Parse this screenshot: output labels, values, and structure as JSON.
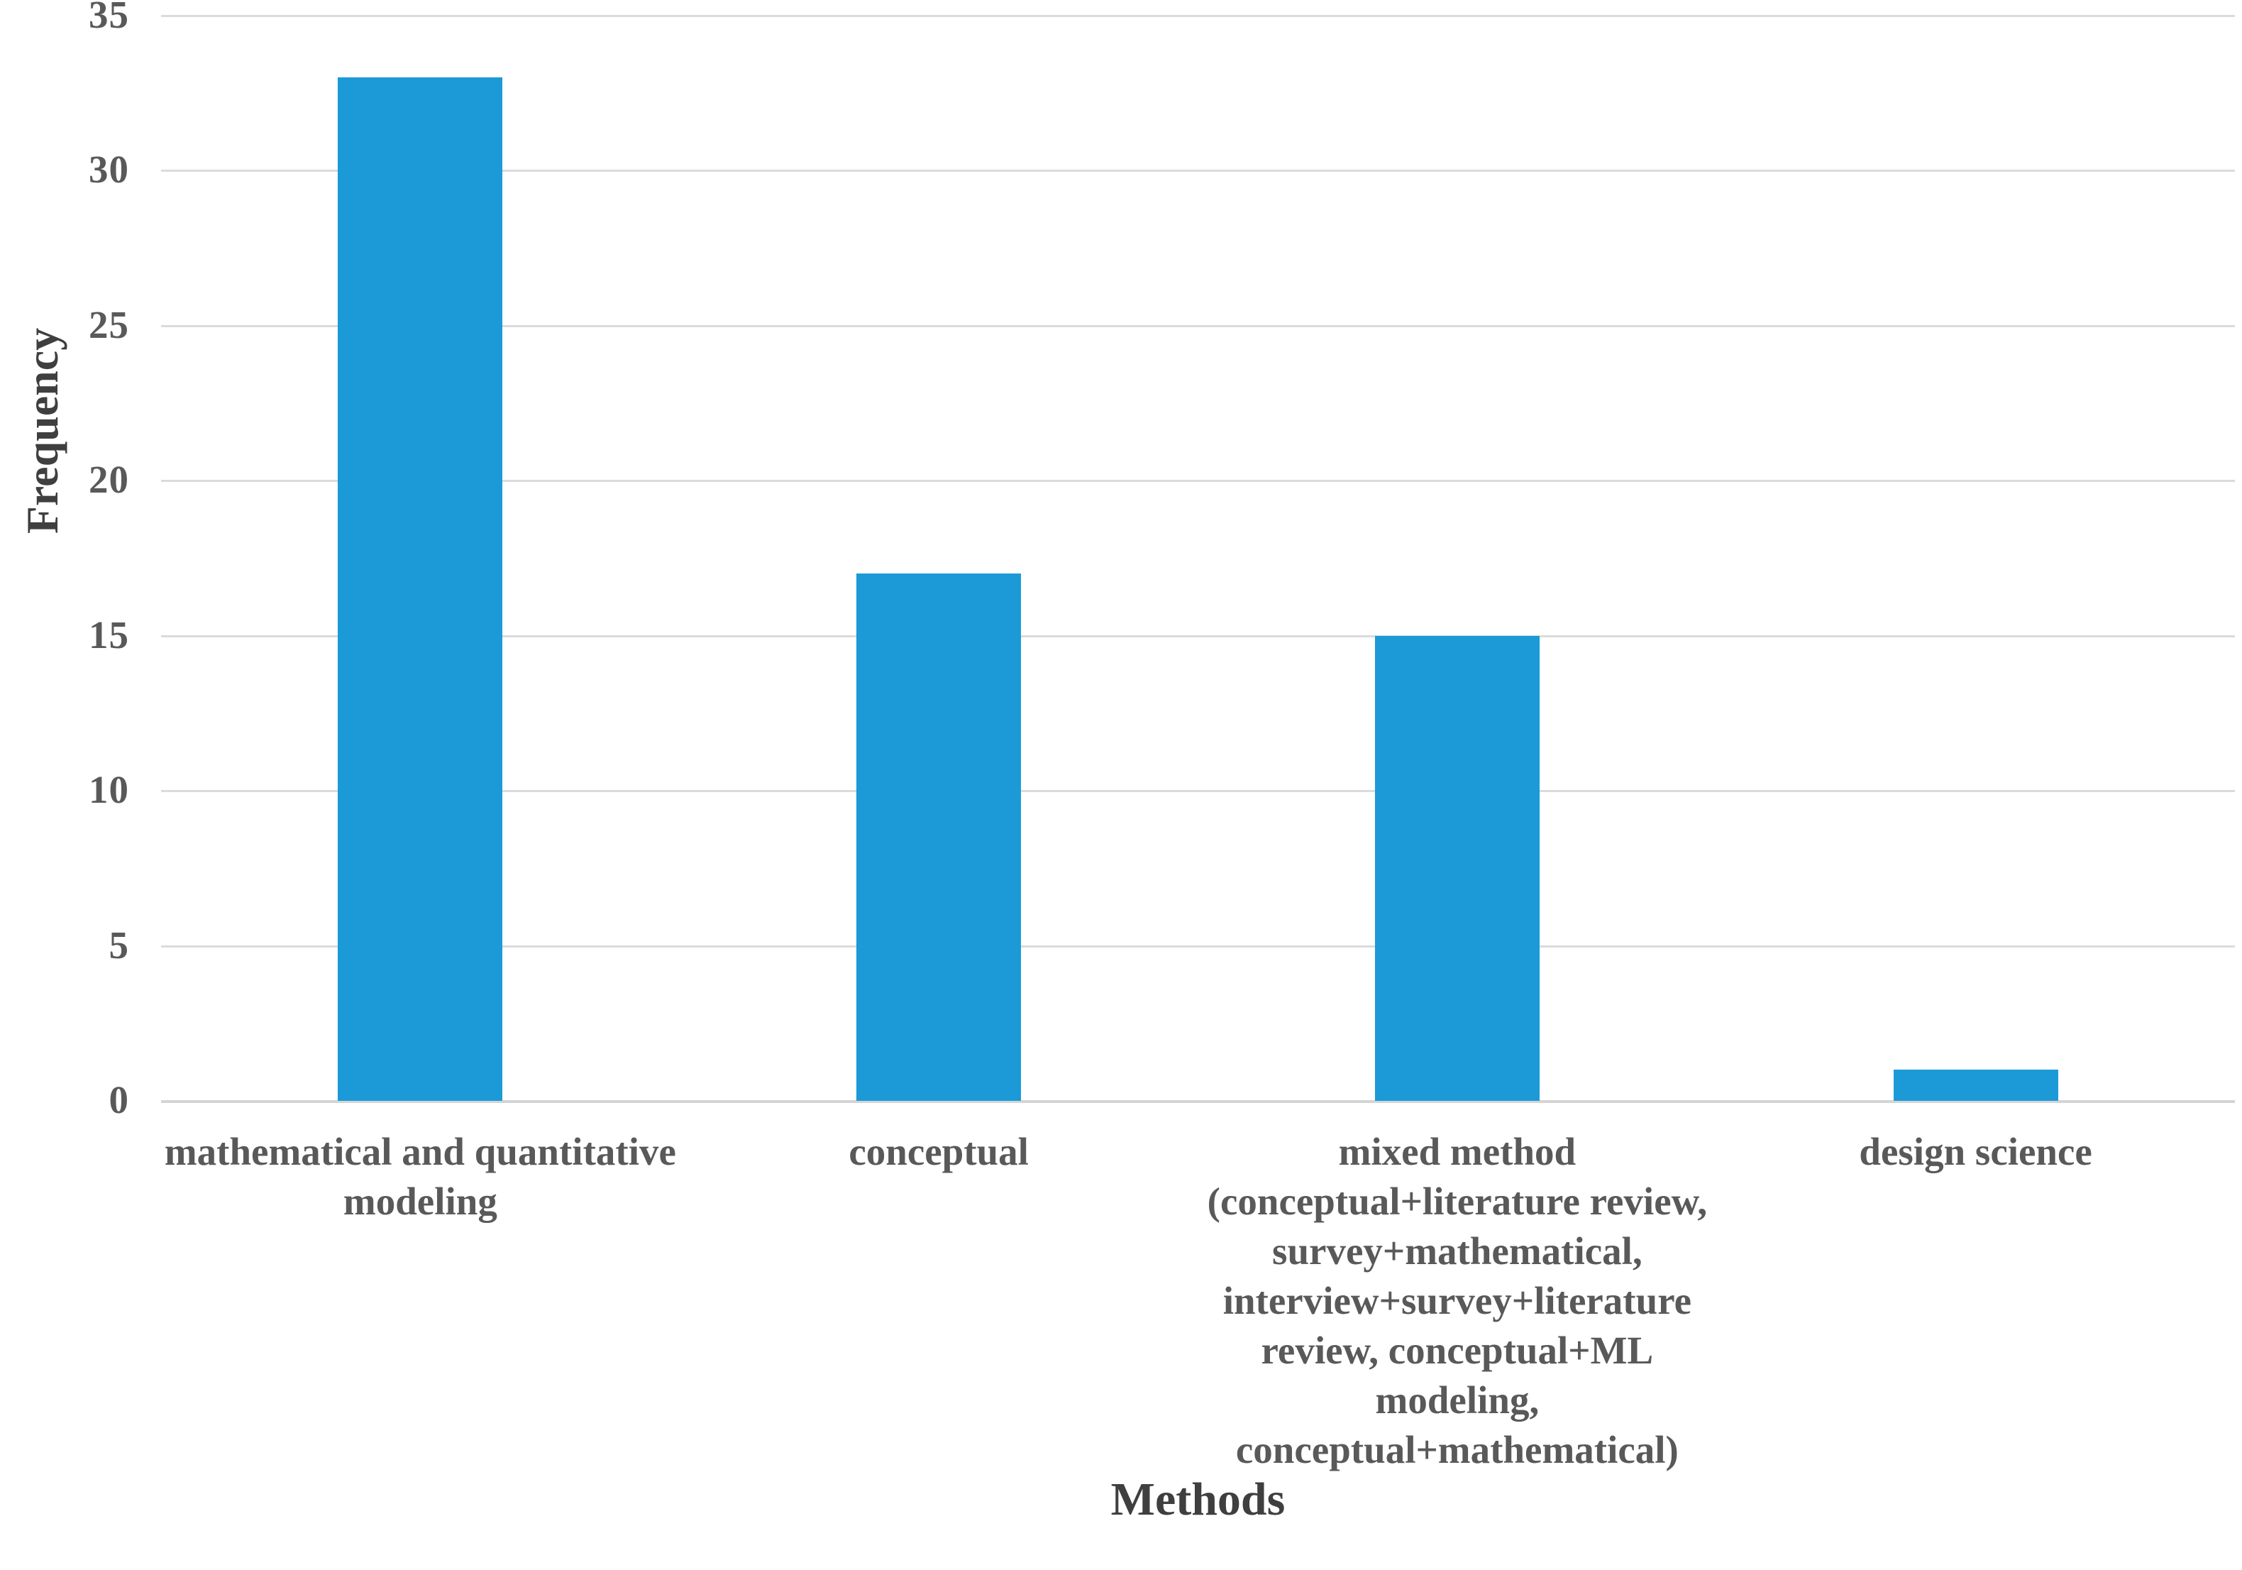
{
  "chart_data": {
    "type": "bar",
    "title": "",
    "xlabel": "Methods",
    "ylabel": "Frequency",
    "categories": [
      "mathematical and quantitative modeling",
      "conceptual",
      "mixed method (conceptual+literature review, survey+mathematical, interview+survey+literature review, conceptual+ML modeling, conceptual+mathematical)",
      "design science"
    ],
    "category_lines": [
      [
        "mathematical and quantitative",
        "modeling"
      ],
      [
        "conceptual"
      ],
      [
        "mixed method",
        "(conceptual+literature review,",
        "survey+mathematical,",
        "interview+survey+literature",
        "review, conceptual+ML",
        "modeling,",
        "conceptual+mathematical)"
      ],
      [
        "design science"
      ]
    ],
    "values": [
      33,
      17,
      15,
      1
    ],
    "ylim": [
      0,
      35
    ],
    "yticks": [
      0,
      5,
      10,
      15,
      20,
      25,
      30,
      35
    ],
    "grid": true,
    "legend": "none",
    "colors": {
      "bar": "#1B9AD7",
      "gridline": "#DBDBDB",
      "axis_line": "#D4D4D4",
      "tick_text": "#595959",
      "category_text": "#595959",
      "title_text": "#3F3F3F"
    }
  }
}
